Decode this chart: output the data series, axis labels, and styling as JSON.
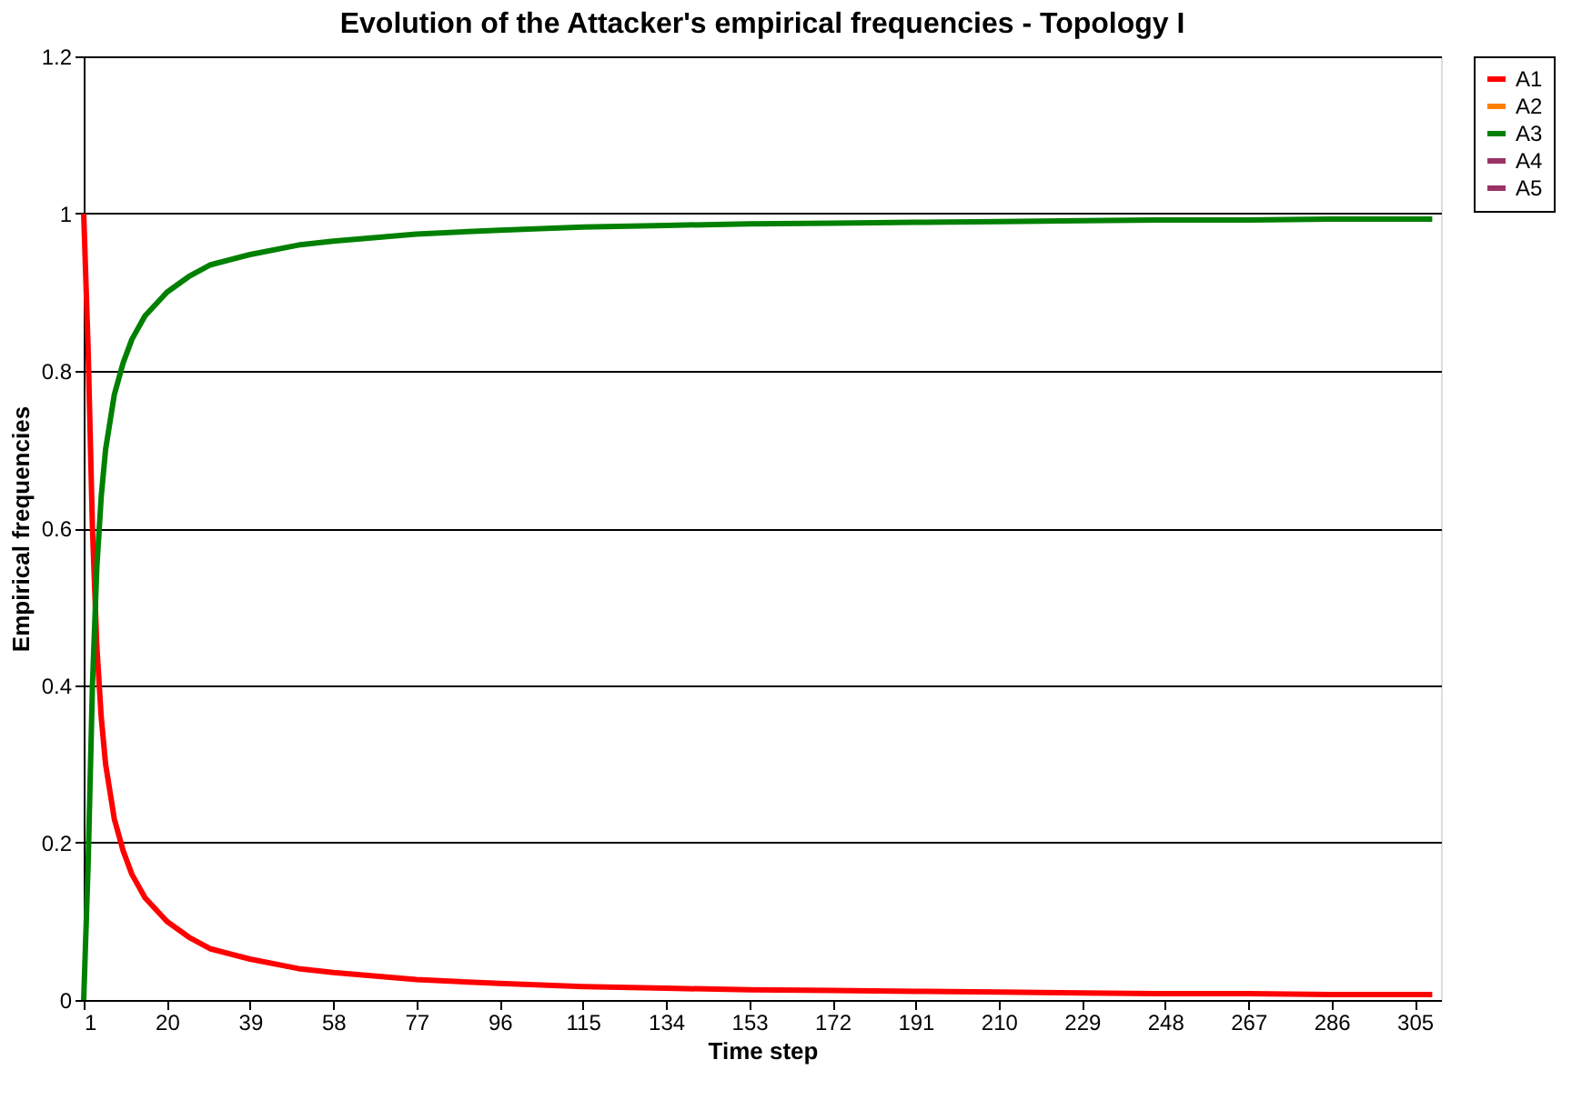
{
  "chart_data": {
    "type": "line",
    "title": "Evolution of the Attacker's empirical frequencies - Topology I",
    "xlabel": "Time step",
    "ylabel": "Empirical frequencies",
    "x": [
      1,
      2,
      3,
      4,
      5,
      6,
      8,
      10,
      12,
      15,
      20,
      25,
      30,
      39,
      50,
      58,
      77,
      96,
      115,
      134,
      153,
      172,
      191,
      210,
      229,
      248,
      267,
      286,
      305,
      309
    ],
    "series": [
      {
        "name": "A1",
        "color": "#ff0000",
        "values": [
          1,
          0.83,
          0.6,
          0.45,
          0.36,
          0.3,
          0.23,
          0.19,
          0.16,
          0.13,
          0.1,
          0.08,
          0.065,
          0.052,
          0.04,
          0.035,
          0.026,
          0.021,
          0.017,
          0.015,
          0.013,
          0.012,
          0.011,
          0.01,
          0.009,
          0.008,
          0.008,
          0.007,
          0.007,
          0.007
        ]
      },
      {
        "name": "A2",
        "color": "#ff8000",
        "values": [
          null,
          null,
          null,
          null,
          null,
          null,
          null,
          null,
          null,
          null,
          null,
          null,
          null,
          null,
          null,
          null,
          null,
          null,
          null,
          null,
          null,
          null,
          null,
          null,
          null,
          null,
          null,
          null,
          null,
          null
        ]
      },
      {
        "name": "A3",
        "color": "#008000",
        "values": [
          0,
          0.17,
          0.4,
          0.55,
          0.64,
          0.7,
          0.77,
          0.81,
          0.84,
          0.87,
          0.9,
          0.92,
          0.935,
          0.948,
          0.96,
          0.965,
          0.974,
          0.979,
          0.983,
          0.985,
          0.987,
          0.988,
          0.989,
          0.99,
          0.991,
          0.992,
          0.992,
          0.993,
          0.993,
          0.993
        ]
      },
      {
        "name": "A4",
        "color": "#993366",
        "values": [
          null,
          null,
          null,
          null,
          null,
          null,
          null,
          null,
          null,
          null,
          null,
          null,
          null,
          null,
          null,
          null,
          null,
          null,
          null,
          null,
          null,
          null,
          null,
          null,
          null,
          null,
          null,
          null,
          null,
          null
        ]
      },
      {
        "name": "A5",
        "color": "#993366",
        "values": [
          null,
          null,
          null,
          null,
          null,
          null,
          null,
          null,
          null,
          null,
          null,
          null,
          null,
          null,
          null,
          null,
          null,
          null,
          null,
          null,
          null,
          null,
          null,
          null,
          null,
          null,
          null,
          null,
          null,
          null
        ]
      }
    ],
    "xlim": [
      1,
      311
    ],
    "xticks": [
      1,
      20,
      39,
      58,
      77,
      96,
      115,
      134,
      153,
      172,
      191,
      210,
      229,
      248,
      267,
      286,
      305
    ],
    "ylim": [
      0,
      1.2
    ],
    "yticks": [
      0,
      0.2,
      0.4,
      0.6,
      0.8,
      1,
      1.2
    ],
    "grid": "y",
    "legend": "right",
    "marker": "none",
    "line_style": "solid"
  }
}
